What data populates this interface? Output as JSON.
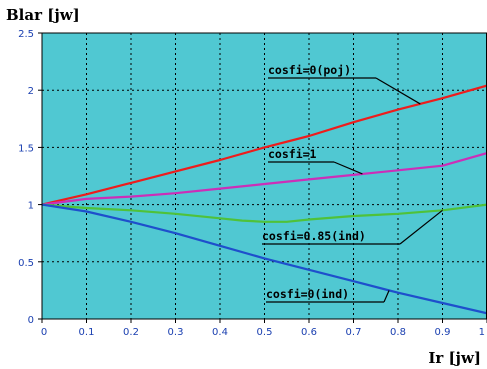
{
  "chart_data": {
    "type": "line",
    "title": "",
    "ylabel": "Blar [jw]",
    "xlabel": "Ir [jw]",
    "xlim": [
      0,
      1
    ],
    "ylim": [
      0,
      2.5
    ],
    "x_ticks": [
      "0",
      "0.1",
      "0.2",
      "0.3",
      "0.4",
      "0.5",
      "0.6",
      "0.7",
      "0.8",
      "0.9",
      "1"
    ],
    "y_ticks": [
      "0",
      "0.5",
      "1",
      "1.5",
      "2",
      "2.5"
    ],
    "grid": true,
    "plot_background": "#50c8d2",
    "series": [
      {
        "name": "cosfi=0(poj)",
        "color": "#ee1c1c",
        "x": [
          0,
          0.1,
          0.2,
          0.3,
          0.4,
          0.5,
          0.6,
          0.7,
          0.8,
          0.9,
          1.0
        ],
        "y": [
          1.0,
          1.09,
          1.19,
          1.29,
          1.39,
          1.5,
          1.6,
          1.72,
          1.83,
          1.93,
          2.04
        ]
      },
      {
        "name": "cosfi=1",
        "color": "#cc2eb8",
        "x": [
          0,
          0.1,
          0.2,
          0.3,
          0.4,
          0.5,
          0.6,
          0.7,
          0.8,
          0.9,
          1.0
        ],
        "y": [
          1.0,
          1.05,
          1.07,
          1.1,
          1.14,
          1.18,
          1.22,
          1.26,
          1.3,
          1.34,
          1.45
        ]
      },
      {
        "name": "cosfi=0.85(ind)",
        "color": "#4fc23a",
        "x": [
          0,
          0.1,
          0.2,
          0.3,
          0.4,
          0.45,
          0.5,
          0.55,
          0.6,
          0.7,
          0.8,
          0.9,
          1.0
        ],
        "y": [
          1.0,
          0.97,
          0.95,
          0.92,
          0.88,
          0.86,
          0.85,
          0.85,
          0.87,
          0.9,
          0.92,
          0.95,
          1.0
        ]
      },
      {
        "name": "cosfi=0(ind)",
        "color": "#1e4fcc",
        "x": [
          0,
          0.1,
          0.2,
          0.3,
          0.4,
          0.5,
          0.6,
          0.7,
          0.8,
          0.9,
          1.0
        ],
        "y": [
          1.0,
          0.94,
          0.85,
          0.75,
          0.64,
          0.53,
          0.43,
          0.33,
          0.23,
          0.14,
          0.05
        ]
      }
    ],
    "annotations": [
      {
        "text": "cosfi=0(poj)",
        "series": 0,
        "at_x": 0.85
      },
      {
        "text": "cosfi=1",
        "series": 1,
        "at_x": 0.72
      },
      {
        "text": "cosfi=0.85(ind)",
        "series": 2,
        "at_x": 0.9
      },
      {
        "text": "cosfi=0(ind)",
        "series": 3,
        "at_x": 0.78
      }
    ]
  }
}
